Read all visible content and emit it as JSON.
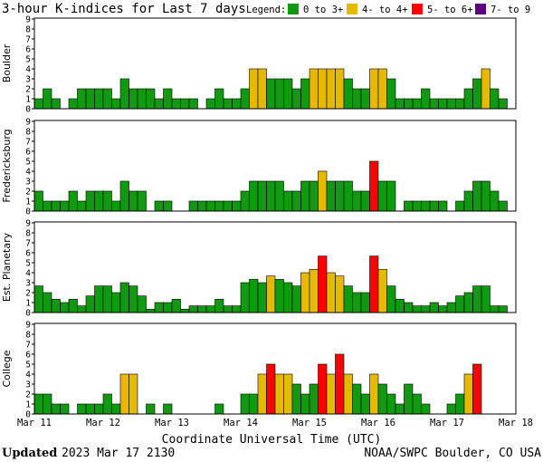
{
  "title": "3-hour K-indices for Last 7 days",
  "legend": {
    "label": "Legend:",
    "items": [
      {
        "text": "0 to 3+",
        "color": "#119911"
      },
      {
        "text": "4- to 4+",
        "color": "#e6b800"
      },
      {
        "text": "5- to 6+",
        "color": "#ff0000"
      },
      {
        "text": "7- to 9",
        "color": "#5c0080"
      }
    ]
  },
  "xlabel": "Coordinate Universal Time (UTC)",
  "x_ticks": [
    "Mar 11",
    "Mar 12",
    "Mar 13",
    "Mar 14",
    "Mar 15",
    "Mar 16",
    "Mar 17",
    "Mar 18"
  ],
  "footer": {
    "updated_label": "Updated",
    "updated_value": "2023 Mar 17 2130",
    "credit": "NOAA/SWPC Boulder, CO USA"
  },
  "chart_data": [
    {
      "type": "bar",
      "ylabel": "Boulder",
      "ylim": [
        0,
        9
      ],
      "y_ticks": [
        0,
        1,
        2,
        3,
        4,
        5,
        6,
        7,
        8,
        9
      ],
      "values": [
        1,
        2,
        1,
        0,
        1,
        2,
        2,
        2,
        2,
        1,
        3,
        2,
        2,
        2,
        1,
        2,
        1,
        1,
        1,
        0,
        1,
        2,
        1,
        1,
        2,
        4,
        4,
        3,
        3,
        3,
        2,
        3,
        4,
        4,
        4,
        4,
        3,
        2,
        2,
        4,
        4,
        3,
        1,
        1,
        1,
        2,
        1,
        1,
        1,
        1,
        2,
        3,
        4,
        2,
        1,
        0
      ]
    },
    {
      "type": "bar",
      "ylabel": "Fredericksburg",
      "ylim": [
        0,
        9
      ],
      "y_ticks": [
        0,
        1,
        2,
        3,
        4,
        5,
        6,
        7,
        8,
        9
      ],
      "values": [
        2,
        1,
        1,
        1,
        2,
        1,
        2,
        2,
        2,
        1,
        3,
        2,
        2,
        0,
        1,
        1,
        0,
        0,
        1,
        1,
        1,
        1,
        1,
        1,
        2,
        3,
        3,
        3,
        3,
        2,
        2,
        3,
        3,
        4,
        3,
        3,
        3,
        2,
        2,
        5,
        3,
        3,
        0,
        1,
        1,
        1,
        1,
        1,
        0,
        1,
        2,
        3,
        3,
        2,
        1,
        0
      ]
    },
    {
      "type": "bar",
      "ylabel": "Est. Planetary",
      "ylim": [
        0,
        9
      ],
      "y_ticks": [
        0,
        1,
        2,
        3,
        4,
        5,
        6,
        7,
        8,
        9
      ],
      "values": [
        2.67,
        2,
        1.33,
        1,
        1.33,
        0.67,
        1.67,
        2.67,
        2.67,
        2,
        3,
        2.67,
        1.67,
        0.33,
        1,
        1,
        1.33,
        0.33,
        0.67,
        0.67,
        0.67,
        1.33,
        0.67,
        0.67,
        3,
        3.33,
        3,
        3.67,
        3.33,
        3,
        2.67,
        4,
        4.33,
        5.67,
        4,
        3.67,
        2.67,
        2,
        2,
        5.67,
        4.33,
        2.67,
        1.33,
        1,
        0.67,
        0.67,
        1,
        0.67,
        1,
        1.67,
        2,
        2.67,
        2.67,
        0.67,
        0.67,
        0
      ]
    },
    {
      "type": "bar",
      "ylabel": "College",
      "ylim": [
        0,
        9
      ],
      "y_ticks": [
        0,
        1,
        2,
        3,
        4,
        5,
        6,
        7,
        8,
        9
      ],
      "values": [
        2,
        2,
        1,
        1,
        0,
        1,
        1,
        1,
        2,
        1,
        4,
        4,
        0,
        1,
        0,
        1,
        0,
        0,
        0,
        0,
        0,
        1,
        0,
        0,
        2,
        2,
        4,
        5,
        4,
        4,
        3,
        2,
        3,
        5,
        4,
        6,
        4,
        3,
        2,
        4,
        3,
        2,
        1,
        3,
        2,
        1,
        0,
        0,
        1,
        2,
        4,
        5,
        0,
        0,
        0,
        0
      ]
    }
  ]
}
